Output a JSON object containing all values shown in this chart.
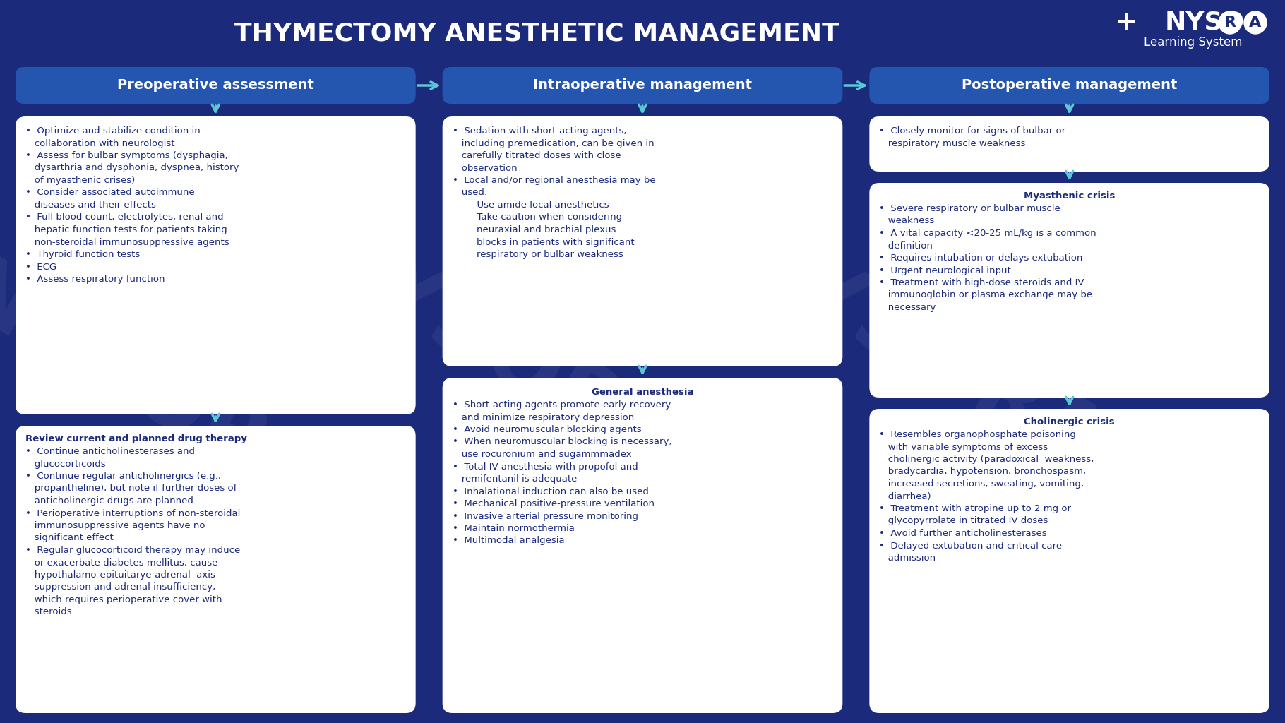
{
  "title": "THYMECTOMY ANESTHETIC MANAGEMENT",
  "bg_color": "#1b2a7b",
  "header_color": "#2456b0",
  "box_color": "#ffffff",
  "text_color": "#1b2a7b",
  "header_text_color": "#ffffff",
  "arrow_color": "#5bc8d8",
  "columns": [
    "Preoperative assessment",
    "Intraoperative management",
    "Postoperative management"
  ],
  "preop_top_text": "•  Optimize and stabilize condition in\n   collaboration with neurologist\n•  Assess for bulbar symptoms (dysphagia,\n   dysarthria and dysphonia, dyspnea, history\n   of myasthenic crises)\n•  Consider associated autoimmune\n   diseases and their effects\n•  Full blood count, electrolytes, renal and\n   hepatic function tests for patients taking\n   non-steroidal immunosuppressive agents\n•  Thyroid function tests\n•  ECG\n•  Assess respiratory function",
  "preop_bottom_title": "Review current and planned drug therapy",
  "preop_bottom_text": "•  Continue anticholinesterases and\n   glucocorticoids\n•  Continue regular anticholinergics (e.g.,\n   propantheline), but note if further doses of\n   anticholinergic drugs are planned\n•  Perioperative interruptions of non-steroidal\n   immunosuppressive agents have no\n   significant effect\n•  Regular glucocorticoid therapy may induce\n   or exacerbate diabetes mellitus, cause\n   hypothalamo-epituitarye-adrenal  axis\n   suppression and adrenal insufficiency,\n   which requires perioperative cover with\n   steroids",
  "intraop_top_text": "•  Sedation with short-acting agents,\n   including premedication, can be given in\n   carefully titrated doses with close\n   observation\n•  Local and/or regional anesthesia may be\n   used:\n      - Use amide local anesthetics\n      - Take caution when considering\n        neuraxial and brachial plexus\n        blocks in patients with significant\n        respiratory or bulbar weakness",
  "intraop_bottom_title": "General anesthesia",
  "intraop_bottom_text": "•  Short-acting agents promote early recovery\n   and minimize respiratory depression\n•  Avoid neuromuscular blocking agents\n•  When neuromuscular blocking is necessary,\n   use rocuronium and sugammmadex\n•  Total IV anesthesia with propofol and\n   remifentanil is adequate\n•  Inhalational induction can also be used\n•  Mechanical positive-pressure ventilation\n•  Invasive arterial pressure monitoring\n•  Maintain normothermia\n•  Multimodal analgesia",
  "postop_top_text": "•  Closely monitor for signs of bulbar or\n   respiratory muscle weakness",
  "postop_mid_title": "Myasthenic crisis",
  "postop_mid_text": "•  Severe respiratory or bulbar muscle\n   weakness\n•  A vital capacity <20-25 mL/kg is a common\n   definition\n•  Requires intubation or delays extubation\n•  Urgent neurological input\n•  Treatment with high-dose steroids and IV\n   immunoglobin or plasma exchange may be\n   necessary",
  "postop_bot_title": "Cholinergic crisis",
  "postop_bot_text": "•  Resembles organophosphate poisoning\n   with variable symptoms of excess\n   cholinergic activity (paradoxical  weakness,\n   bradycardia, hypotension, bronchospasm,\n   increased secretions, sweating, vomiting,\n   diarrhea)\n•  Treatment with atropine up to 2 mg or\n   glycopyrrolate in titrated IV doses\n•  Avoid further anticholinesterases\n•  Delayed extubation and critical care\n   admission"
}
